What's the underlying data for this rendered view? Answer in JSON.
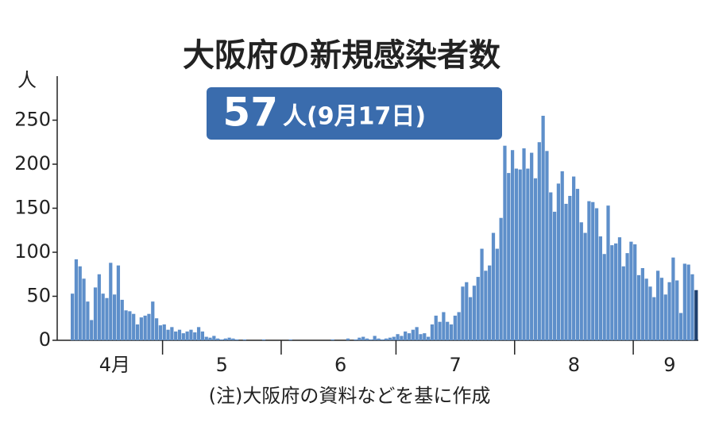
{
  "chart_data": {
    "type": "bar",
    "title": "大阪府の新規感染者数",
    "highlight": {
      "value": 57,
      "label": "人(9月17日)"
    },
    "y_unit": "人",
    "note": "(注)大阪府の資料などを基に作成",
    "categories": [
      null,
      null,
      null,
      null,
      null,
      null,
      null,
      null,
      null,
      null,
      null,
      "4月",
      null,
      null,
      null,
      null,
      null,
      null,
      null,
      null,
      null,
      null,
      null,
      null,
      null,
      null,
      null,
      null,
      null,
      null,
      null,
      null,
      null,
      null,
      null,
      null,
      null,
      null,
      null,
      "5",
      null,
      null,
      null,
      null,
      null,
      null,
      null,
      null,
      null,
      null,
      null,
      null,
      null,
      null,
      null,
      null,
      null,
      null,
      null,
      null,
      null,
      null,
      null,
      null,
      null,
      null,
      null,
      null,
      null,
      null,
      "6",
      null,
      null,
      null,
      null,
      null,
      null,
      null,
      null,
      null,
      null,
      null,
      null,
      null,
      null,
      null,
      null,
      null,
      null,
      null,
      null,
      null,
      null,
      null,
      null,
      null,
      null,
      null,
      null,
      null,
      "7",
      null,
      null,
      null,
      null,
      null,
      null,
      null,
      null,
      null,
      null,
      null,
      null,
      null,
      null,
      null,
      null,
      null,
      null,
      null,
      null,
      null,
      null,
      null,
      null,
      null,
      null,
      null,
      null,
      null,
      null,
      "8",
      null,
      null,
      null,
      null,
      null,
      null,
      null,
      null,
      null,
      null,
      null,
      null,
      null,
      null,
      null,
      null,
      null,
      null,
      null,
      null,
      null,
      null,
      null,
      null,
      "9",
      null,
      null,
      null,
      null,
      null,
      null,
      null
    ],
    "values": [
      53,
      92,
      84,
      70,
      44,
      23,
      60,
      75,
      53,
      48,
      88,
      52,
      85,
      46,
      34,
      33,
      30,
      18,
      26,
      28,
      30,
      44,
      25,
      17,
      18,
      12,
      15,
      10,
      12,
      8,
      10,
      12,
      9,
      15,
      10,
      4,
      3,
      5,
      2,
      1,
      2,
      3,
      2,
      1,
      0,
      1,
      0,
      0,
      0,
      0,
      1,
      0,
      0,
      0,
      0,
      0,
      0,
      1,
      0,
      0,
      0,
      0,
      0,
      0,
      0,
      0,
      0,
      0,
      1,
      0,
      0,
      0,
      2,
      0,
      1,
      3,
      4,
      2,
      1,
      5,
      2,
      1,
      2,
      3,
      4,
      7,
      5,
      10,
      8,
      12,
      15,
      7,
      8,
      4,
      18,
      28,
      21,
      32,
      21,
      18,
      28,
      32,
      61,
      66,
      49,
      62,
      72,
      104,
      79,
      85,
      122,
      104,
      139,
      221,
      190,
      216,
      195,
      194,
      218,
      195,
      213,
      184,
      225,
      255,
      215,
      168,
      146,
      178,
      192,
      155,
      164,
      186,
      172,
      134,
      122,
      158,
      157,
      150,
      118,
      98,
      153,
      108,
      110,
      117,
      84,
      99,
      112,
      109,
      74,
      82,
      70,
      61,
      49,
      79,
      71,
      52,
      66,
      94,
      68,
      31,
      87,
      86,
      75,
      57
    ],
    "color": "#5e8fca",
    "last_color": "#1e3f6d",
    "ylim": [
      0,
      300
    ],
    "yticks": [
      0,
      50,
      100,
      150,
      200,
      250
    ],
    "grid": false
  }
}
